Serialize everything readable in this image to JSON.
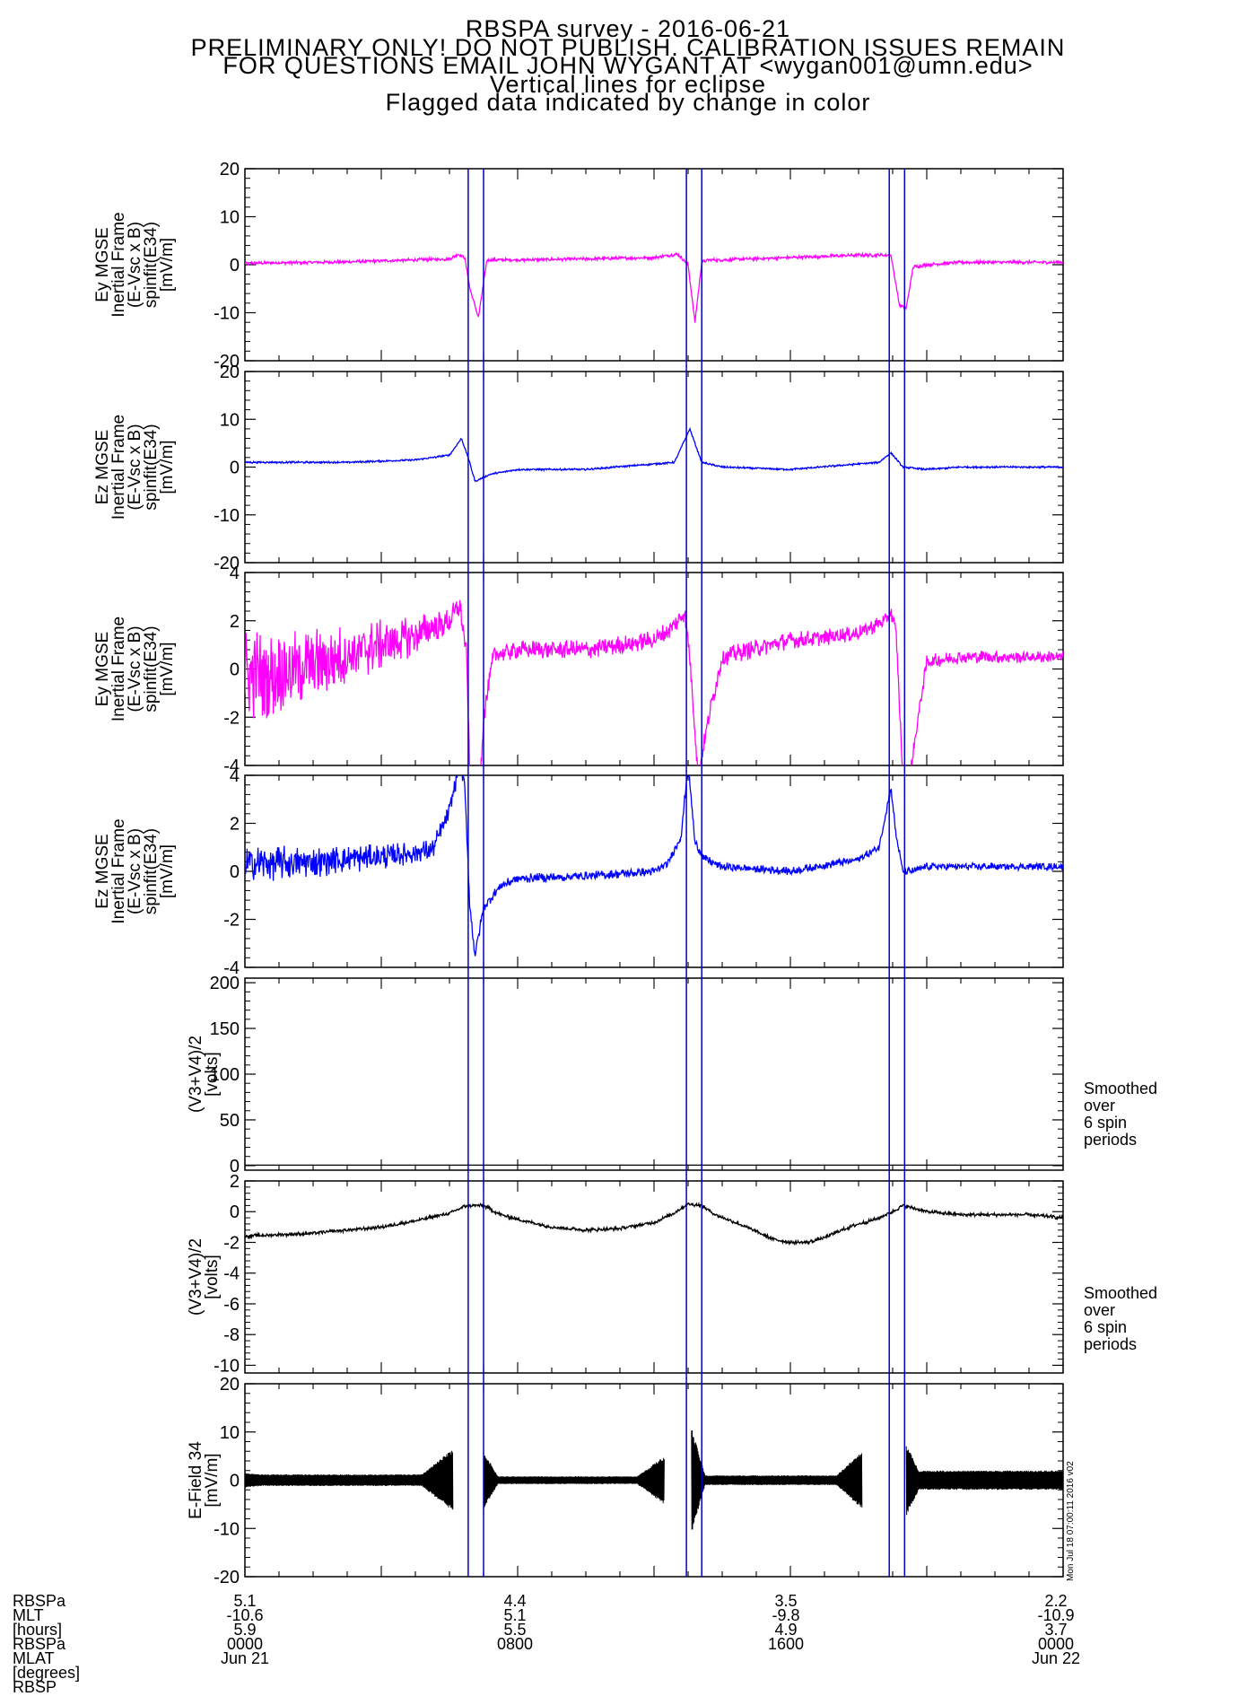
{
  "title": {
    "lines": [
      "RBSPA survey - 2016-06-21",
      "PRELIMINARY ONLY! DO NOT PUBLISH. CALIBRATION ISSUES REMAIN",
      "FOR QUESTIONS EMAIL JOHN WYGANT AT <wygan001@umn.edu>",
      "Vertical lines for eclipse",
      "Flagged data indicated by change in color"
    ]
  },
  "colors": {
    "magenta": "#ff00ff",
    "blue": "#0000ff",
    "black": "#000000",
    "eclipse_line": "#0000cc"
  },
  "eclipse_lines_hours": [
    6.55,
    7.0,
    12.95,
    13.4,
    18.9,
    19.35
  ],
  "side_notes": {
    "panel5": [
      "Smoothed",
      "over",
      "6 spin",
      "periods"
    ],
    "panel6": [
      "Smoothed",
      "over",
      "6 spin",
      "periods"
    ]
  },
  "stamp": "Mon Jul 18 07:00:11 2016 v02",
  "footer": {
    "row_labels": [
      "RBSPa",
      "MLT",
      "[hours]",
      "RBSPa",
      "MLAT",
      "[degrees]",
      "RBSP"
    ],
    "columns": [
      {
        "hours": 0,
        "values": [
          "5.1",
          "-10.6",
          "5.9",
          "0000",
          "Jun 21"
        ]
      },
      {
        "hours": 8,
        "values": [
          "4.4",
          "5.1",
          "5.5",
          "0800",
          ""
        ]
      },
      {
        "hours": 16,
        "values": [
          "3.5",
          "-9.8",
          "4.9",
          "1600",
          ""
        ]
      },
      {
        "hours": 24,
        "values": [
          "2.2",
          "-10.9",
          "3.7",
          "0000",
          "Jun 22"
        ]
      }
    ]
  },
  "chart_data": {
    "type": "line",
    "x_units": "hours since 2016-06-21 00:00",
    "xlim": [
      0,
      24
    ],
    "panels": [
      {
        "ylabel": [
          "Ey MGSE",
          "Inertial Frame",
          "(E-Vsc x B)",
          "spinfit(E34)",
          "[mV/m]"
        ],
        "ylim": [
          -20,
          20
        ],
        "yticks": [
          "20",
          "10",
          "0",
          "-10",
          "-20"
        ],
        "series": [
          {
            "color": "magenta",
            "noise": 0.35,
            "x": [
              0,
              3,
              6,
              6.25,
              6.45,
              6.6,
              6.85,
              7.1,
              8,
              10,
              12,
              12.7,
              13.0,
              13.2,
              13.4,
              13.6,
              14,
              16,
              18,
              18.95,
              19.2,
              19.4,
              19.6,
              20,
              21,
              24
            ],
            "y": [
              0.3,
              0.6,
              1.2,
              2.2,
              1.5,
              -5,
              -11,
              1.0,
              1.0,
              1.2,
              1.5,
              2.2,
              0,
              -12,
              0.5,
              1.0,
              1.0,
              1.5,
              2.0,
              2.0,
              -8.5,
              -9,
              -0.5,
              0,
              0.5,
              0.5
            ]
          }
        ]
      },
      {
        "ylabel": [
          "Ez MGSE",
          "Inertial Frame",
          "(E-Vsc x B)",
          "spinfit(E34)",
          "[mV/m]"
        ],
        "ylim": [
          -20,
          20
        ],
        "yticks": [
          "20",
          "10",
          "0",
          "-10",
          "-20"
        ],
        "series": [
          {
            "color": "blue",
            "noise": 0.2,
            "x": [
              0,
              3,
              5,
              6,
              6.35,
              6.55,
              6.75,
              7.2,
              8,
              10,
              12.6,
              13.05,
              13.4,
              14,
              16,
              18.6,
              18.95,
              19.3,
              20,
              21,
              24
            ],
            "y": [
              1.0,
              1.0,
              1.5,
              2.5,
              6,
              2,
              -3,
              -1.5,
              -0.5,
              -0.5,
              1,
              8,
              1,
              0,
              -0.5,
              1,
              3,
              0,
              -0.5,
              0,
              0
            ]
          }
        ]
      },
      {
        "ylabel": [
          "Ey MGSE",
          "Inertial Frame",
          "(E-Vsc x B)",
          "spinfit(E34)",
          "[mV/m]"
        ],
        "ylim": [
          -4,
          4
        ],
        "yticks": [
          "4",
          "2",
          "0",
          "-2",
          "-4"
        ],
        "series": [
          {
            "color": "magenta",
            "noise": 1.0,
            "x": [
              0,
              1,
              2,
              3,
              4,
              5,
              6,
              6.3,
              6.5,
              6.6,
              6.9,
              7.0,
              7.3,
              8,
              10,
              12,
              12.6,
              12.9,
              13.05,
              13.3,
              13.6,
              14,
              16,
              17,
              18,
              18.8,
              18.95,
              19.1,
              19.3,
              19.5,
              19.8,
              20,
              21,
              22,
              23,
              24
            ],
            "y": [
              -0.2,
              -0.2,
              0.2,
              0.6,
              1.0,
              1.4,
              2.0,
              2.6,
              0.6,
              -4.5,
              -4.5,
              -2,
              0.6,
              0.8,
              0.8,
              1.2,
              1.8,
              2.4,
              0.5,
              -4.5,
              -2,
              0.5,
              1.2,
              1.3,
              1.5,
              2.0,
              2.4,
              1.5,
              -4.5,
              -4.5,
              -1.5,
              0.3,
              0.5,
              0.5,
              0.5,
              0.5
            ],
            "noise_x": [
              0,
              6,
              7,
              14,
              19.5,
              24
            ],
            "noise_amp": [
              2.0,
              0.6,
              0.4,
              0.4,
              0.3,
              0.25
            ]
          }
        ]
      },
      {
        "ylabel": [
          "Ez MGSE",
          "Inertial Frame",
          "(E-Vsc x B)",
          "spinfit(E34)",
          "[mV/m]"
        ],
        "ylim": [
          -4,
          4
        ],
        "yticks": [
          "4",
          "2",
          "0",
          "-2",
          "-4"
        ],
        "series": [
          {
            "color": "blue",
            "noise": 0.3,
            "x": [
              0,
              2,
              4,
              5.5,
              6.0,
              6.3,
              6.45,
              6.6,
              6.75,
              7.0,
              7.5,
              8,
              10,
              12,
              12.4,
              12.8,
              13.0,
              13.2,
              13.5,
              14,
              16,
              18,
              18.6,
              18.95,
              19.1,
              19.3,
              19.6,
              20,
              24
            ],
            "y": [
              0.3,
              0.4,
              0.6,
              0.9,
              2.5,
              4.5,
              3.5,
              -1.5,
              -3.5,
              -1.5,
              -0.6,
              -0.3,
              -0.2,
              0.0,
              0.3,
              1.5,
              4.5,
              1.2,
              0.5,
              0.2,
              0.0,
              0.5,
              1.0,
              3.5,
              1.5,
              0,
              0,
              0.2,
              0.2
            ],
            "noise_x": [
              0,
              6,
              7,
              24
            ],
            "noise_amp": [
              0.8,
              0.4,
              0.2,
              0.15
            ]
          }
        ]
      },
      {
        "ylabel": [
          "(V3+V4)/2",
          "[volts]"
        ],
        "ylim": [
          -5,
          205
        ],
        "yticks": [
          "200",
          "150",
          "100",
          "50",
          "0"
        ],
        "ytick_values": [
          200,
          150,
          100,
          50,
          0
        ],
        "series": [
          {
            "color": "black",
            "noise": 0,
            "x": [
              0,
              24
            ],
            "y": [
              0.5,
              0.5
            ]
          }
        ]
      },
      {
        "ylabel": [
          "(V3+V4)/2",
          "[volts]"
        ],
        "ylim": [
          -10.5,
          2
        ],
        "yticks": [
          "2",
          "0",
          "-2",
          "-4",
          "-6",
          "-8",
          "-10"
        ],
        "ytick_values": [
          2,
          0,
          -2,
          -4,
          -6,
          -8,
          -10
        ],
        "series": [
          {
            "color": "black",
            "noise": 0.12,
            "x": [
              0,
              1,
              2,
              3,
              4,
              5,
              6,
              6.5,
              7,
              7.5,
              8,
              9,
              10,
              11,
              12,
              12.5,
              13,
              13.4,
              13.8,
              14.5,
              15,
              15.5,
              16,
              16.5,
              17,
              17.5,
              18,
              18.5,
              19,
              19.3,
              19.5,
              20,
              21,
              22,
              23,
              24
            ],
            "y": [
              -1.6,
              -1.5,
              -1.4,
              -1.2,
              -1.0,
              -0.6,
              -0.1,
              0.4,
              0.4,
              -0.2,
              -0.5,
              -1.0,
              -1.2,
              -1.1,
              -0.7,
              -0.2,
              0.5,
              0.4,
              -0.2,
              -0.8,
              -1.3,
              -1.8,
              -2.0,
              -2.0,
              -1.7,
              -1.2,
              -0.8,
              -0.5,
              0.0,
              0.4,
              0.3,
              0.0,
              -0.2,
              -0.2,
              -0.2,
              -0.4
            ]
          }
        ]
      },
      {
        "ylabel": [
          "E-Field 34",
          "[mV/m]"
        ],
        "ylim": [
          -20,
          20
        ],
        "yticks": [
          "20",
          "10",
          "0",
          "-10",
          "-20"
        ],
        "series": [
          {
            "color": "black",
            "type": "envelope",
            "segments": [
              {
                "x0": 0.0,
                "x1": 6.1,
                "a0": 1.5,
                "a1": 1.2,
                "a2": 6.5
              },
              {
                "x0": 7.0,
                "x1": 12.3,
                "a0": 6.0,
                "a1": 0.8,
                "a2": 5.0
              },
              {
                "x0": 13.1,
                "x1": 18.1,
                "a0": 11.0,
                "a1": 1.0,
                "a2": 6.0
              },
              {
                "x0": 19.4,
                "x1": 24.0,
                "a0": 7.5,
                "a1": 2.0,
                "a2": 2.0
              }
            ]
          }
        ]
      }
    ]
  }
}
